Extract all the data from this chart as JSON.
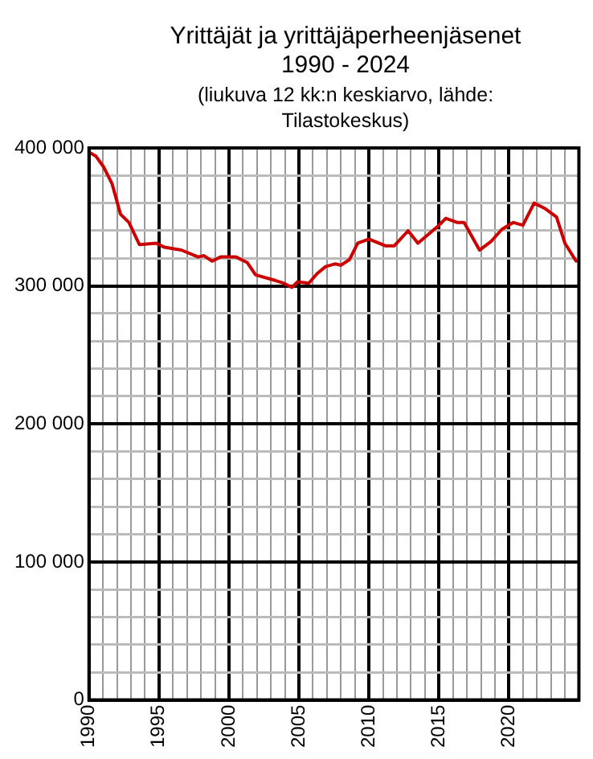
{
  "chart_data": {
    "type": "line",
    "title": "Yrittäjät ja yrittäjäperheenjäsenet 1990 - 2024",
    "subtitle": "(liukuva 12 kk:n keskiarvo, lähde: Tilastokeskus)",
    "x": [
      1990.0,
      1990.5,
      1991.06,
      1991.65,
      1992.25,
      1992.85,
      1993.6,
      1994.8,
      1995.4,
      1996.6,
      1997.8,
      1998.2,
      1998.8,
      1999.4,
      2000.5,
      2001.3,
      2001.9,
      2003.3,
      2003.9,
      2004.5,
      2004.9,
      2005.7,
      2006.3,
      2006.9,
      2007.6,
      2008.0,
      2008.6,
      2009.2,
      2010.0,
      2011.2,
      2011.8,
      2012.8,
      2013.5,
      2014.9,
      2015.5,
      2016.3,
      2016.8,
      2017.9,
      2018.7,
      2019.5,
      2020.3,
      2021.0,
      2021.8,
      2022.6,
      2023.4,
      2024.0,
      2024.8
    ],
    "series": [
      {
        "color": "#cc0000",
        "values": [
          397000,
          394000,
          386000,
          374000,
          352000,
          346000,
          330000,
          331000,
          328000,
          326000,
          321000,
          322000,
          318000,
          321000,
          321000,
          317000,
          308000,
          304000,
          302000,
          299000,
          303000,
          302000,
          309000,
          314000,
          316000,
          315000,
          319000,
          331000,
          334000,
          329000,
          329000,
          340000,
          331000,
          343000,
          349000,
          346000,
          346000,
          326000,
          332000,
          341000,
          346000,
          344000,
          360000,
          356000,
          350000,
          331000,
          318000
        ]
      }
    ],
    "xlim": [
      1990,
      2025
    ],
    "xticks": [
      1990,
      {
        "value": 1991,
        "label": null
      },
      {
        "value": 1992,
        "label": null
      },
      {
        "value": 1993,
        "label": null
      },
      {
        "value": 1994,
        "label": null
      },
      1995,
      {
        "value": 1996,
        "label": null
      },
      {
        "value": 1997,
        "label": null
      },
      {
        "value": 1998,
        "label": null
      },
      {
        "value": 1999,
        "label": null
      },
      2000,
      {
        "value": 2001,
        "label": null
      },
      {
        "value": 2002,
        "label": null
      },
      {
        "value": 2003,
        "label": null
      },
      {
        "value": 2004,
        "label": null
      },
      2005,
      {
        "value": 2006,
        "label": null
      },
      {
        "value": 2007,
        "label": null
      },
      {
        "value": 2008,
        "label": null
      },
      {
        "value": 2009,
        "label": null
      },
      2010,
      {
        "value": 2011,
        "label": null
      },
      {
        "value": 2012,
        "label": null
      },
      {
        "value": 2013,
        "label": null
      },
      {
        "value": 2014,
        "label": null
      },
      2015,
      {
        "value": 2016,
        "label": null
      },
      {
        "value": 2017,
        "label": null
      },
      {
        "value": 2018,
        "label": null
      },
      {
        "value": 2019,
        "label": null
      },
      2020,
      {
        "value": 2021,
        "label": null
      },
      {
        "value": 2022,
        "label": null
      },
      {
        "value": 2023,
        "label": null
      },
      {
        "value": 2024,
        "label": null
      }
    ],
    "ylim": [
      0,
      400000
    ],
    "yticks": [
      0,
      {
        "value": 20000,
        "label": null
      },
      {
        "value": 40000,
        "label": null
      },
      {
        "value": 60000,
        "label": null
      },
      {
        "value": 80000,
        "label": null
      },
      {
        "value": 100000,
        "label": "100 000"
      },
      {
        "value": 120000,
        "label": null
      },
      {
        "value": 140000,
        "label": null
      },
      {
        "value": 160000,
        "label": null
      },
      {
        "value": 180000,
        "label": null
      },
      {
        "value": 200000,
        "label": "200 000"
      },
      {
        "value": 220000,
        "label": null
      },
      {
        "value": 240000,
        "label": null
      },
      {
        "value": 260000,
        "label": null
      },
      {
        "value": 280000,
        "label": null
      },
      {
        "value": 300000,
        "label": "300 000"
      },
      {
        "value": 320000,
        "label": null
      },
      {
        "value": 340000,
        "label": null
      },
      {
        "value": 360000,
        "label": null
      },
      {
        "value": 380000,
        "label": null
      },
      {
        "value": 400000,
        "label": "400 000"
      }
    ],
    "grid": true,
    "legend": false,
    "marker": "none",
    "line_style": "solid"
  }
}
